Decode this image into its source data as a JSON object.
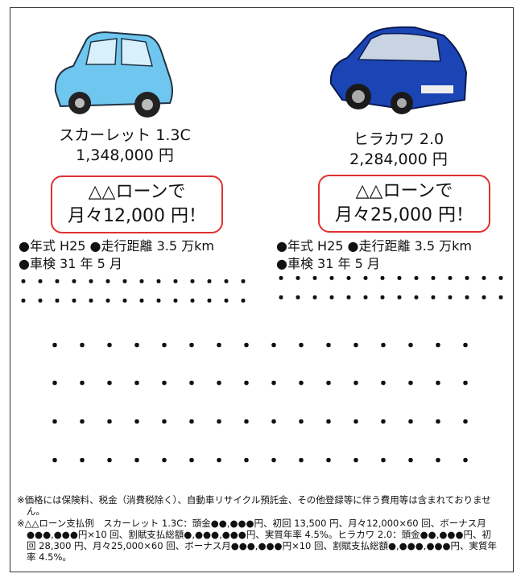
{
  "cars": [
    {
      "name": "スカーレット 1.3C",
      "price": "1,348,000 円",
      "loan_line1": "△△ローンで",
      "loan_line2": "月々12,000 円！",
      "spec1": "●年式 H25 ●走行距離 3.5 万km",
      "spec2": "●車検 31 年 5 月",
      "dots": [
        "・・・・・・・・・・・・・・",
        "・・・・・・・・・・・・・・"
      ]
    },
    {
      "name": "ヒラカワ 2.0",
      "price": "2,284,000 円",
      "loan_line1": "△△ローンで",
      "loan_line2": "月々25,000 円！",
      "spec1": "●年式 H25 ●走行距離 3.5 万km",
      "spec2": "●車検 31 年 5 月",
      "dots": [
        "・・・・・・・・・・・・・・",
        "・・・・・・・・・・・・・・"
      ]
    }
  ],
  "body_dots": [
    "・・・・・・・・・・・・・・・・",
    "・・・・・・・・・・・・・・・・",
    "・・・・・・・・・・・・・・・・",
    "・・・・・・・・・・・・・・・・"
  ],
  "notes": [
    "※価格には保険料、税金（消費税除く）、自動車リサイクル預託金、その他登録等に伴う費用等は含まれておりません。",
    "※△△ローン支払例　スカーレット 1.3C：頭金●●,●●●円、初回 13,500 円、月々12,000×60 回、ボーナス月●●●,●●●円×10 回、割賦支払総額●,●●●,●●●円、実質年率 4.5%。ヒラカワ 2.0：頭金●●,●●●円、初回 28,300 円、月々25,000×60 回、ボーナス月●●●,●●●円×10 回、割賦支払総額●,●●●,●●●円、実質年率 4.5%。"
  ]
}
